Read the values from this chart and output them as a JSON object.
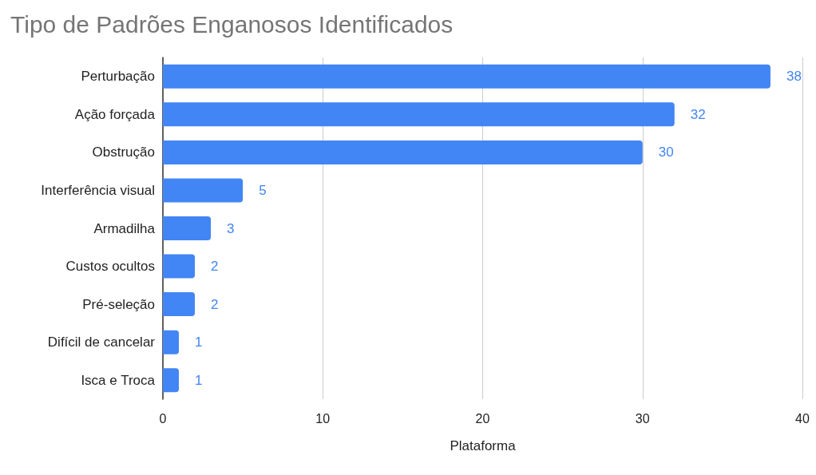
{
  "chart_data": {
    "type": "bar",
    "orientation": "horizontal",
    "title": "Tipo de Padrões Enganosos Identificados",
    "xlabel": "Plataforma",
    "categories": [
      "Perturbação",
      "Ação forçada",
      "Obstrução",
      "Interferência visual",
      "Armadilha",
      "Custos ocultos",
      "Pré-seleção",
      "Difícil de cancelar",
      "Isca e Troca"
    ],
    "values": [
      38,
      32,
      30,
      5,
      3,
      2,
      2,
      1,
      1
    ],
    "color": "#4285f4",
    "xlim": [
      0,
      40
    ],
    "xticks": [
      0,
      10,
      20,
      30,
      40
    ],
    "grid": "x",
    "data_labels": true
  }
}
